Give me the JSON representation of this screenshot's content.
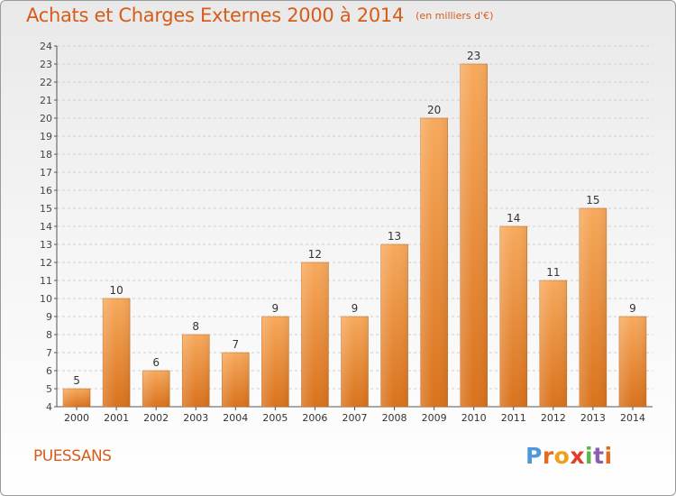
{
  "title": "Achats et Charges Externes 2000 à 2014",
  "subtitle": "(en milliers d'€)",
  "town": "PUESSANS",
  "logo_text": "Proxiti",
  "colors": {
    "bar_light": "#f6a55a",
    "bar_dark": "#d9741f",
    "title": "#d65c1a"
  },
  "chart_data": {
    "type": "bar",
    "categories": [
      "2000",
      "2001",
      "2002",
      "2003",
      "2004",
      "2005",
      "2006",
      "2007",
      "2008",
      "2009",
      "2010",
      "2011",
      "2012",
      "2013",
      "2014"
    ],
    "values": [
      5,
      10,
      6,
      8,
      7,
      9,
      12,
      9,
      13,
      20,
      23,
      14,
      11,
      15,
      9
    ],
    "ylim": [
      4,
      24
    ],
    "yticks": [
      4,
      5,
      6,
      7,
      8,
      9,
      10,
      11,
      12,
      13,
      14,
      15,
      16,
      17,
      18,
      19,
      20,
      21,
      22,
      23,
      24
    ],
    "grid": true
  }
}
